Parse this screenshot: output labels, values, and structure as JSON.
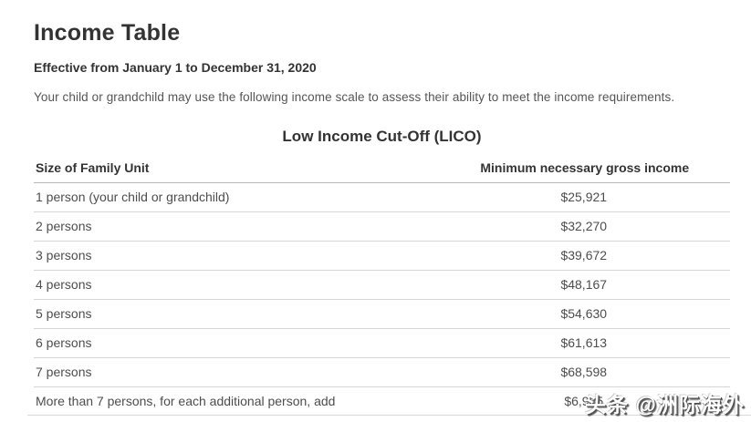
{
  "page": {
    "title": "Income Table",
    "effective_dates": "Effective from January 1 to December 31, 2020",
    "intro": "Your child or grandchild may use the following income scale to assess their ability to meet the income requirements."
  },
  "table": {
    "caption": "Low Income Cut-Off (LICO)",
    "columns": [
      "Size of Family Unit",
      "Minimum necessary gross income"
    ],
    "rows": [
      {
        "label": "1 person (your child or grandchild)",
        "value": "$25,921"
      },
      {
        "label": "2 persons",
        "value": "$32,270"
      },
      {
        "label": "3 persons",
        "value": "$39,672"
      },
      {
        "label": "4 persons",
        "value": "$48,167"
      },
      {
        "label": "5 persons",
        "value": "$54,630"
      },
      {
        "label": "6 persons",
        "value": "$61,613"
      },
      {
        "label": "7 persons",
        "value": "$68,598"
      },
      {
        "label": "More than 7 persons, for each additional person, add",
        "value": "$6,985"
      }
    ]
  },
  "watermark": {
    "text": "头条 @洲际海外"
  },
  "colors": {
    "heading_text": "#333333",
    "body_text": "#555555",
    "cell_text": "#4d4d4d",
    "header_border": "#b7b7b7",
    "row_border": "#d6d6d6",
    "background": "#ffffff",
    "watermark_fill": "#ffffff",
    "watermark_shadow": "#4f4f4f"
  }
}
